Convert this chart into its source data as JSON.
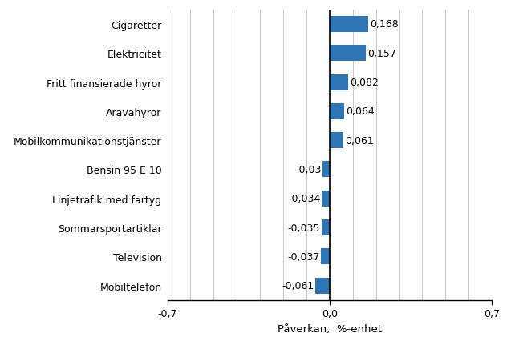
{
  "categories": [
    "Mobiltelefon",
    "Television",
    "Sommarsportartiklar",
    "Linjetrafik med fartyg",
    "Bensin 95 E 10",
    "Mobilkommunikationstjänster",
    "Aravahyror",
    "Fritt finansierade hyror",
    "Elektricitet",
    "Cigaretter"
  ],
  "values": [
    -0.061,
    -0.037,
    -0.035,
    -0.034,
    -0.03,
    0.061,
    0.064,
    0.082,
    0.157,
    0.168
  ],
  "labels": [
    "-0,061",
    "-0,037",
    "-0,035",
    "-0,034",
    "-0,03",
    "0,061",
    "0,064",
    "0,082",
    "0,157",
    "0,168"
  ],
  "bar_color": "#2E75B6",
  "xlabel": "Påverkan,  %-enhet",
  "xlim": [
    -0.7,
    0.7
  ],
  "xticks": [
    -0.7,
    0.0,
    0.7
  ],
  "xtick_labels": [
    "-0,7",
    "0,0",
    "0,7"
  ],
  "background_color": "#ffffff",
  "grid_color": "#c8c8c8",
  "label_fontsize": 9,
  "xlabel_fontsize": 9.5
}
